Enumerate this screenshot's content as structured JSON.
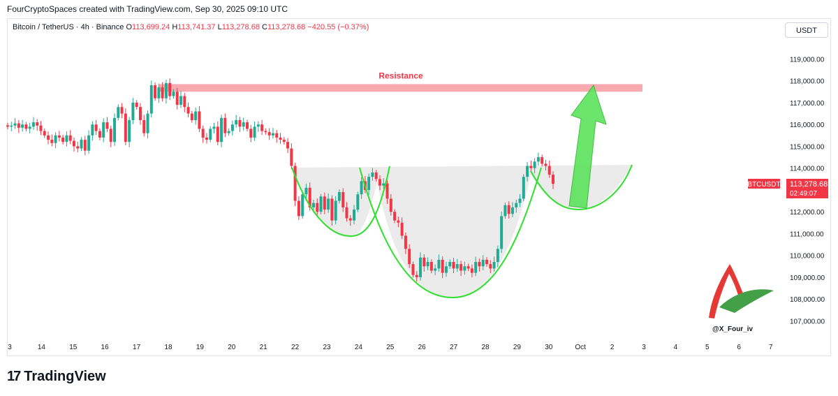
{
  "header": {
    "attribution": "FourCryptoSpaces created with TradingView.com, Sep 30, 2025 09:10 UTC"
  },
  "legend": {
    "symbol": "Bitcoin / TetherUS · 4h · Binance",
    "open_label": "O",
    "open": "113,699.24",
    "high_label": "H",
    "high": "113,741.37",
    "low_label": "L",
    "low": "113,278.68",
    "close_label": "C",
    "close": "113,278.68",
    "change": "−420.55 (−0.37%)"
  },
  "currency_button": "USDT",
  "price_tag": {
    "symbol": "BTCUSDT",
    "price": "113,278.68",
    "countdown": "02:49:07"
  },
  "watermark": "@X_Four_iv",
  "brand": {
    "logo": "17",
    "name": "TradingView"
  },
  "colors": {
    "up": "#22ab94",
    "down": "#f23645",
    "resistance": "#f7a1a7",
    "pattern": "#2ee02e",
    "fill": "#e9e9e9"
  },
  "chart_data": {
    "type": "candlestick",
    "title": "",
    "ylim": [
      106500,
      119800
    ],
    "y_ticks": [
      "107,000.00",
      "108,000.00",
      "109,000.00",
      "110,000.00",
      "111,000.00",
      "112,000.00",
      "113,000.00",
      "114,000.00",
      "115,000.00",
      "116,000.00",
      "117,000.00",
      "118,000.00",
      "119,000.00"
    ],
    "x_ticks": [
      "3",
      "14",
      "15",
      "16",
      "17",
      "18",
      "19",
      "20",
      "21",
      "22",
      "23",
      "24",
      "25",
      "26",
      "27",
      "28",
      "29",
      "30",
      "Oct",
      "2",
      "3",
      "4",
      "5",
      "6",
      "7"
    ],
    "annotations": {
      "resistance_label": "Resistance",
      "resistance_range": [
        117500,
        117850
      ]
    },
    "closes": [
      115900,
      115950,
      116050,
      115850,
      116000,
      115800,
      115900,
      116100,
      115950,
      115700,
      115500,
      115300,
      115150,
      115500,
      115400,
      115200,
      115500,
      115250,
      115000,
      114900,
      115300,
      114800,
      115500,
      116000,
      115700,
      115400,
      116100,
      115800,
      115200,
      116300,
      116800,
      116500,
      115200,
      116200,
      117000,
      116800,
      116200,
      115600,
      116500,
      117800,
      117200,
      117700,
      117200,
      117900,
      117300,
      117500,
      116900,
      117300,
      116800,
      116500,
      116200,
      116600,
      115800,
      115400,
      115300,
      115800,
      115900,
      115200,
      116300,
      115600,
      115700,
      116000,
      116200,
      115900,
      116100,
      115800,
      115400,
      115900,
      116000,
      115700,
      115650,
      115500,
      115600,
      115400,
      115300,
      115200,
      114900,
      114100,
      112500,
      111800,
      112800,
      113100,
      112200,
      112400,
      112000,
      112700,
      112100,
      112600,
      111600,
      112500,
      112900,
      112200,
      111700,
      111600,
      112100,
      112800,
      113400,
      113000,
      113600,
      113800,
      113500,
      113200,
      113300,
      112600,
      112000,
      111600,
      111500,
      110900,
      110300,
      109600,
      109100,
      109000,
      109900,
      109500,
      109700,
      109300,
      109400,
      109800,
      109200,
      109500,
      109700,
      109400,
      109600,
      109300,
      109500,
      109400,
      109200,
      109700,
      109500,
      109800,
      109600,
      109400,
      109700,
      110300,
      111800,
      112300,
      111900,
      112200,
      112400,
      112600,
      113600,
      114100,
      114000,
      114300,
      114500,
      114200,
      114100,
      113700,
      113280
    ]
  }
}
